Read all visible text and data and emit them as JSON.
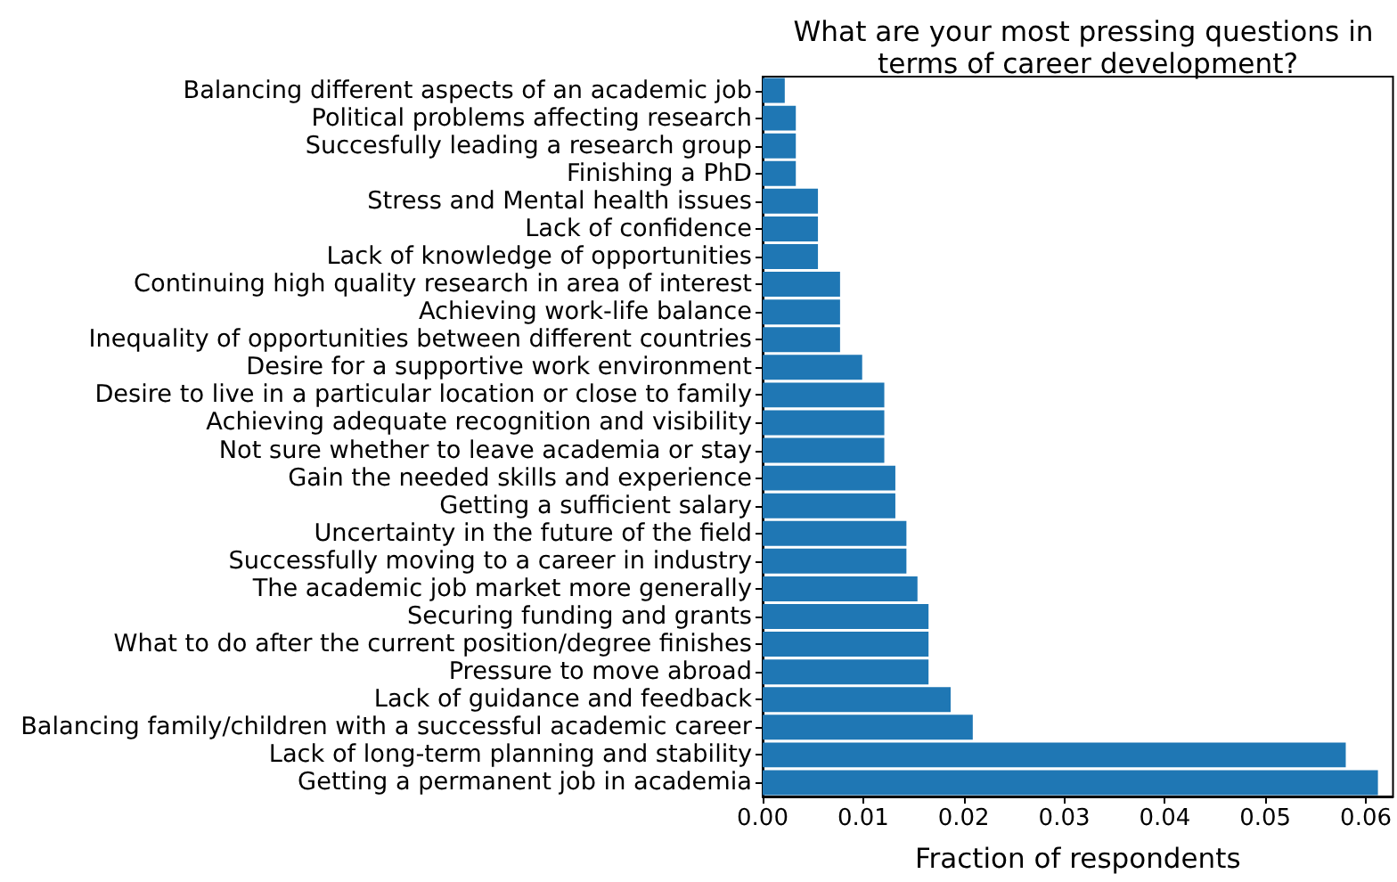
{
  "chart_data": {
    "type": "bar",
    "orientation": "horizontal",
    "title": "What are your most pressing questions in terms of career development?",
    "xlabel": "Fraction of respondents",
    "categories": [
      "Balancing different aspects of an academic job",
      "Political problems affecting research",
      "Succesfully leading a research group",
      "Finishing a PhD",
      "Stress and Mental health issues",
      "Lack of confidence",
      "Lack of knowledge of opportunities",
      "Continuing high quality research in area of interest",
      "Achieving work-life balance",
      "Inequality of opportunities between different countries",
      "Desire for a supportive work environment",
      "Desire to live in a particular location or close to family",
      "Achieving adequate recognition and visibility",
      "Not sure whether to leave academia or stay",
      "Gain the needed skills and experience",
      "Getting a sufficient salary",
      "Uncertainty in the future of the field",
      "Successfully moving to a career in industry",
      "The academic job market more generally",
      "Securing funding and grants",
      "What to do after the current position/degree finishes",
      "Pressure to move abroad",
      "Lack of guidance and feedback",
      "Balancing family/children with a successful academic career",
      "Lack of long-term planning and stability",
      "Getting a permanent job in academia"
    ],
    "values": [
      0.0022,
      0.0033,
      0.0033,
      0.0033,
      0.0055,
      0.0055,
      0.0055,
      0.0077,
      0.0077,
      0.0077,
      0.0099,
      0.0121,
      0.0121,
      0.0121,
      0.0132,
      0.0132,
      0.0143,
      0.0143,
      0.0154,
      0.0165,
      0.0165,
      0.0165,
      0.0187,
      0.0209,
      0.058,
      0.0612
    ],
    "color": "#1f77b4",
    "xlim": [
      0,
      0.0627
    ],
    "xticks": [
      {
        "value": 0,
        "label": "0.00"
      },
      0.01,
      0.02,
      0.03,
      0.04,
      0.05,
      0.06
    ]
  }
}
